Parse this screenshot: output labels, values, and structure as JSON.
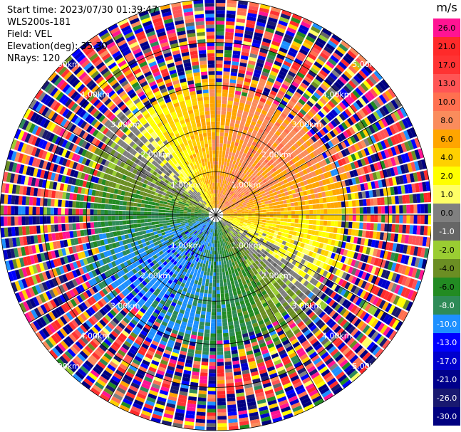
{
  "header": {
    "start_time": "Start time: 2023/07/30 01:39:47",
    "instrument": "WLS200s-181",
    "field": "Field: VEL",
    "elevation": "Elevation(deg): 35.30",
    "nrays": "NRays: 120"
  },
  "colorbar": {
    "unit": "m/s",
    "ticks": [
      "26.0",
      "21.0",
      "17.0",
      "13.0",
      "10.0",
      "8.0",
      "6.0",
      "4.0",
      "2.0",
      "1.0",
      "0.0",
      "-1.0",
      "-2.0",
      "-4.0",
      "-6.0",
      "-8.0",
      "-10.0",
      "-13.0",
      "-17.0",
      "-21.0",
      "-26.0",
      "-30.0"
    ],
    "colors": [
      "#ff1493",
      "#ff2a2a",
      "#ff3333",
      "#ff5555",
      "#ff7050",
      "#fa8c5c",
      "#ffa500",
      "#ffd000",
      "#ffff00",
      "#ffff66",
      "#808080",
      "#666666",
      "#9acd32",
      "#6b8e23",
      "#228b22",
      "#2e8b57",
      "#1e90ff",
      "#0000ff",
      "#0000cd",
      "#00008b",
      "#191970",
      "#000080"
    ]
  },
  "chart_data": {
    "type": "heatmap",
    "title": "",
    "projection": "polar (PPI)",
    "nrays": 120,
    "range_rings_km": [
      {
        "km": 1,
        "label": "1.00km"
      },
      {
        "km": 2,
        "label": "2.00km"
      },
      {
        "km": 3,
        "label": "3.00km"
      },
      {
        "km": 4,
        "label": "4.00km"
      },
      {
        "km": 5,
        "label": "5.00km"
      }
    ],
    "max_range_km": 5.0,
    "velocity_range": [
      -30,
      30
    ],
    "pattern": "receding (positive) velocities to the north-east, approaching (negative) velocities to the south-west, noisy speckle beyond about 3 km"
  }
}
